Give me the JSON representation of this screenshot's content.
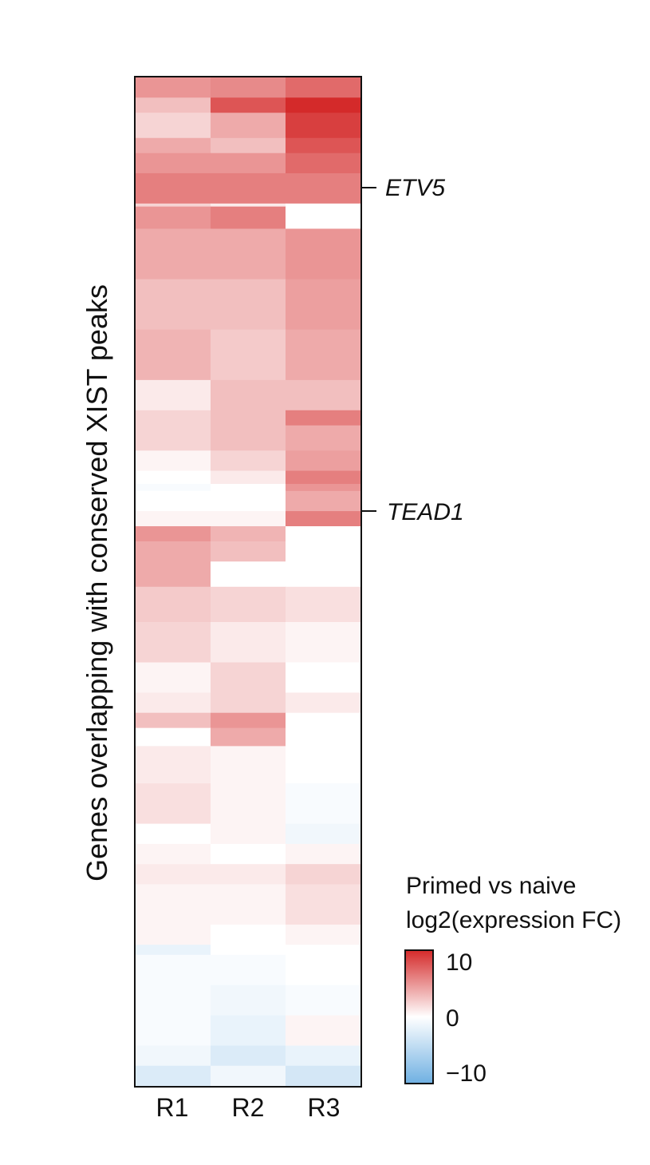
{
  "chart_data": {
    "type": "heatmap",
    "ylabel": "Genes overlapping with conserved XIST peaks",
    "xlabel": "",
    "columns": [
      "R1",
      "R2",
      "R3"
    ],
    "highlighted_genes": [
      {
        "label": "ETV5",
        "row_fraction": 0.11
      },
      {
        "label": "TEAD1",
        "row_fraction": 0.43
      }
    ],
    "color_scale": {
      "title_line1": "Primed vs naive",
      "title_line2": "log2(expression FC)",
      "min": -10,
      "mid": 0,
      "max": 10,
      "tick_labels": [
        "10",
        "0",
        "−10"
      ],
      "colors": {
        "high": "#d42a2a",
        "mid": "#ffffff",
        "low": "#6fb0e2"
      }
    },
    "row_segments": [
      {
        "start": 0.0,
        "end": 0.02,
        "values": [
          5.0,
          5.5,
          7.0
        ]
      },
      {
        "start": 0.02,
        "end": 0.035,
        "values": [
          3.0,
          8.0,
          10.0
        ]
      },
      {
        "start": 0.035,
        "end": 0.06,
        "values": [
          2.0,
          4.0,
          9.0
        ]
      },
      {
        "start": 0.06,
        "end": 0.075,
        "values": [
          4.0,
          3.0,
          8.0
        ]
      },
      {
        "start": 0.075,
        "end": 0.095,
        "values": [
          5.0,
          5.0,
          7.0
        ]
      },
      {
        "start": 0.095,
        "end": 0.125,
        "values": [
          6.0,
          6.0,
          6.0
        ]
      },
      {
        "start": 0.125,
        "end": 0.128,
        "values": [
          2.0,
          1.0,
          0.0
        ]
      },
      {
        "start": 0.128,
        "end": 0.15,
        "values": [
          5.0,
          6.0,
          0.0
        ]
      },
      {
        "start": 0.15,
        "end": 0.2,
        "values": [
          4.0,
          4.0,
          5.0
        ]
      },
      {
        "start": 0.2,
        "end": 0.25,
        "values": [
          3.0,
          3.0,
          4.5
        ]
      },
      {
        "start": 0.25,
        "end": 0.3,
        "values": [
          3.5,
          2.5,
          4.0
        ]
      },
      {
        "start": 0.3,
        "end": 0.33,
        "values": [
          1.0,
          3.0,
          3.0
        ]
      },
      {
        "start": 0.33,
        "end": 0.345,
        "values": [
          2.0,
          3.0,
          6.0
        ]
      },
      {
        "start": 0.345,
        "end": 0.37,
        "values": [
          2.0,
          3.0,
          4.0
        ]
      },
      {
        "start": 0.37,
        "end": 0.39,
        "values": [
          0.5,
          2.0,
          4.5
        ]
      },
      {
        "start": 0.39,
        "end": 0.403,
        "values": [
          0.0,
          1.0,
          6.0
        ]
      },
      {
        "start": 0.403,
        "end": 0.41,
        "values": [
          -0.5,
          0.0,
          5.0
        ]
      },
      {
        "start": 0.41,
        "end": 0.43,
        "values": [
          0.0,
          0.0,
          4.0
        ]
      },
      {
        "start": 0.43,
        "end": 0.445,
        "values": [
          0.5,
          0.5,
          6.0
        ]
      },
      {
        "start": 0.445,
        "end": 0.46,
        "values": [
          5.0,
          3.5,
          0.0
        ]
      },
      {
        "start": 0.46,
        "end": 0.48,
        "values": [
          4.0,
          3.0,
          0.0
        ]
      },
      {
        "start": 0.48,
        "end": 0.505,
        "values": [
          4.0,
          0.0,
          0.0
        ]
      },
      {
        "start": 0.505,
        "end": 0.54,
        "values": [
          2.5,
          2.0,
          1.5
        ]
      },
      {
        "start": 0.54,
        "end": 0.58,
        "values": [
          2.0,
          1.0,
          0.5
        ]
      },
      {
        "start": 0.58,
        "end": 0.61,
        "values": [
          0.5,
          2.0,
          0.0
        ]
      },
      {
        "start": 0.61,
        "end": 0.63,
        "values": [
          1.0,
          2.0,
          1.0
        ]
      },
      {
        "start": 0.63,
        "end": 0.645,
        "values": [
          3.0,
          5.0,
          0.0
        ]
      },
      {
        "start": 0.645,
        "end": 0.663,
        "values": [
          0.0,
          4.0,
          0.0
        ]
      },
      {
        "start": 0.663,
        "end": 0.7,
        "values": [
          1.0,
          0.5,
          0.0
        ]
      },
      {
        "start": 0.7,
        "end": 0.74,
        "values": [
          1.5,
          0.5,
          -0.5
        ]
      },
      {
        "start": 0.74,
        "end": 0.76,
        "values": [
          0.0,
          0.5,
          -1.0
        ]
      },
      {
        "start": 0.76,
        "end": 0.78,
        "values": [
          0.5,
          0.0,
          0.5
        ]
      },
      {
        "start": 0.78,
        "end": 0.8,
        "values": [
          1.0,
          1.0,
          2.0
        ]
      },
      {
        "start": 0.8,
        "end": 0.84,
        "values": [
          0.5,
          0.5,
          1.5
        ]
      },
      {
        "start": 0.84,
        "end": 0.86,
        "values": [
          0.5,
          0.0,
          0.5
        ]
      },
      {
        "start": 0.86,
        "end": 0.87,
        "values": [
          -1.5,
          0.0,
          0.0
        ]
      },
      {
        "start": 0.87,
        "end": 0.9,
        "values": [
          -0.5,
          -0.5,
          0.0
        ]
      },
      {
        "start": 0.9,
        "end": 0.93,
        "values": [
          -0.5,
          -1.0,
          -0.5
        ]
      },
      {
        "start": 0.93,
        "end": 0.96,
        "values": [
          -0.5,
          -1.5,
          0.5
        ]
      },
      {
        "start": 0.96,
        "end": 0.98,
        "values": [
          -1.0,
          -2.5,
          -1.5
        ]
      },
      {
        "start": 0.98,
        "end": 1.0,
        "values": [
          -2.5,
          -1.0,
          -3.0
        ]
      }
    ]
  }
}
